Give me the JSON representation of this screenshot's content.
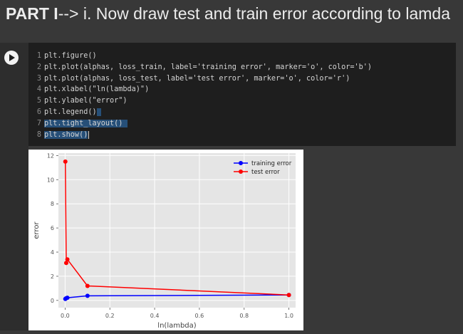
{
  "header": {
    "title_bold": "PART I",
    "title_rest": "--> i. Now draw test and train error according to lamda"
  },
  "code": {
    "lines": [
      {
        "num": "1",
        "text": "plt.figure()"
      },
      {
        "num": "2",
        "text": "plt.plot(alphas, loss_train, label='training error', marker='o', color='b')"
      },
      {
        "num": "3",
        "text": "plt.plot(alphas, loss_test, label='test error', marker='o', color='r')"
      },
      {
        "num": "4",
        "text": "plt.xlabel(\"ln(lambda)\")"
      },
      {
        "num": "5",
        "text": "plt.ylabel(\"error\")"
      },
      {
        "num": "6",
        "text": "plt.legend()"
      },
      {
        "num": "7",
        "text": "plt.tight_layout()"
      },
      {
        "num": "8",
        "text": "plt.show()"
      }
    ]
  },
  "chart_data": {
    "type": "line",
    "xlabel": "ln(lambda)",
    "ylabel": "error",
    "xlim": [
      -0.03,
      1.03
    ],
    "ylim": [
      -0.6,
      12.2
    ],
    "xticks": [
      0.0,
      0.2,
      0.4,
      0.6,
      0.8,
      1.0
    ],
    "xtick_labels": [
      "0.0",
      "0.2",
      "0.4",
      "0.6",
      "0.8",
      "1.0"
    ],
    "yticks": [
      0,
      2,
      4,
      6,
      8,
      10,
      12
    ],
    "ytick_labels": [
      "0",
      "2",
      "4",
      "6",
      "8",
      "10",
      "12"
    ],
    "grid": true,
    "legend_position": "top-right",
    "series": [
      {
        "name": "training error",
        "color": "#0000ff",
        "x": [
          0.001,
          0.005,
          0.01,
          0.1,
          1.0
        ],
        "y": [
          0.12,
          0.18,
          0.22,
          0.38,
          0.45
        ]
      },
      {
        "name": "test error",
        "color": "#ff0000",
        "x": [
          0.001,
          0.005,
          0.01,
          0.1,
          1.0
        ],
        "y": [
          11.5,
          3.1,
          3.4,
          1.2,
          0.45
        ]
      }
    ]
  }
}
